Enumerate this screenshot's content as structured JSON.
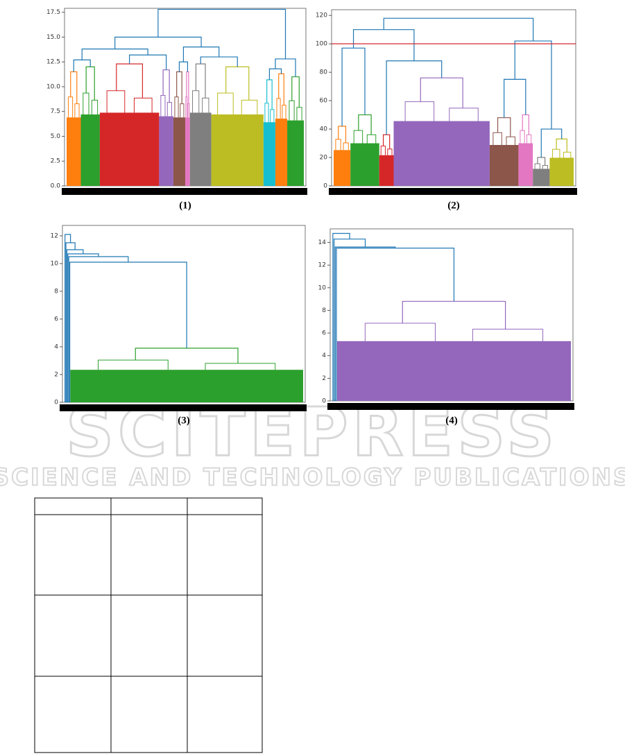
{
  "figure": {
    "watermark": {
      "line1": "SCITEPRESS",
      "line2": "SCIENCE AND TECHNOLOGY PUBLICATIONS"
    },
    "panels": [
      {
        "caption": "(1)",
        "ylim": [
          0,
          17.9
        ],
        "yticks": [
          {
            "value": 0,
            "label": "0.0"
          },
          2.5,
          {
            "value": 5,
            "label": "5.0"
          },
          7.5,
          {
            "value": 10,
            "label": "10.0"
          },
          12.5,
          {
            "value": 15,
            "label": "15.0"
          },
          17.5
        ],
        "link_color": "#1f77b4",
        "chain": false,
        "clusters": [
          {
            "color": "#ff7f0e",
            "height": 11.5,
            "size": 0.06
          },
          {
            "color": "#2ca02c",
            "height": 12,
            "size": 0.08
          },
          {
            "color": "#d62728",
            "height": 12.3,
            "size": 0.25
          },
          {
            "color": "#9467bd",
            "height": 11.7,
            "size": 0.06
          },
          {
            "color": "#8c564b",
            "height": 11.5,
            "size": 0.05
          },
          {
            "color": "#e377c2",
            "height": 11.5,
            "size": 0.02
          },
          {
            "color": "#7f7f7f",
            "height": 12.3,
            "size": 0.09
          },
          {
            "color": "#bcbd22",
            "height": 12,
            "size": 0.22
          },
          {
            "color": "#17becf",
            "height": 10.7,
            "size": 0.05
          },
          {
            "color": "#ff7f0e",
            "height": 11.3,
            "size": 0.05
          },
          {
            "color": "#2ca02c",
            "height": 11,
            "size": 0.07
          }
        ],
        "merges": [
          12.7,
          13.2,
          12.5,
          13,
          11.8,
          13.8,
          14,
          12.8,
          15,
          17.8
        ]
      },
      {
        "caption": "(2)",
        "ylim": [
          0,
          124
        ],
        "yticks": [
          0,
          20,
          40,
          60,
          80,
          100,
          120
        ],
        "threshold": {
          "value": 100,
          "color": "#d62728"
        },
        "link_color": "#1f77b4",
        "chain": false,
        "clusters": [
          {
            "color": "#ff7f0e",
            "height": 42,
            "size": 0.07
          },
          {
            "color": "#2ca02c",
            "height": 50,
            "size": 0.12
          },
          {
            "color": "#d62728",
            "height": 36,
            "size": 0.06
          },
          {
            "color": "#9467bd",
            "height": 76,
            "size": 0.4
          },
          {
            "color": "#8c564b",
            "height": 48,
            "size": 0.12
          },
          {
            "color": "#e377c2",
            "height": 50,
            "size": 0.06
          },
          {
            "color": "#7f7f7f",
            "height": 20,
            "size": 0.07
          },
          {
            "color": "#bcbd22",
            "height": 33,
            "size": 0.1
          }
        ],
        "merges": [
          97,
          88,
          75,
          40,
          110,
          102,
          118
        ]
      },
      {
        "caption": "(3)",
        "ylim": [
          0,
          12.75
        ],
        "yticks": [
          0,
          2,
          4,
          6,
          8,
          10,
          12
        ],
        "link_color": "#1f77b4",
        "chain": true,
        "clusters": [
          {
            "color": "#1f77b4",
            "height": 0,
            "size": 0.004
          },
          {
            "color": "#1f77b4",
            "height": 0,
            "size": 0.004
          },
          {
            "color": "#1f77b4",
            "height": 0,
            "size": 0.004
          },
          {
            "color": "#1f77b4",
            "height": 0,
            "size": 0.004
          },
          {
            "color": "#1f77b4",
            "height": 0,
            "size": 0.004
          },
          {
            "color": "#1f77b4",
            "height": 0,
            "size": 0.004
          },
          {
            "color": "#2ca02c",
            "height": 3.9,
            "size": 0.976
          }
        ],
        "merges": [
          10.1,
          10.5,
          10.7,
          11,
          11.5,
          12.1
        ]
      },
      {
        "caption": "(4)",
        "ylim": [
          0,
          15.2
        ],
        "yticks": [
          0,
          2,
          4,
          6,
          8,
          10,
          12,
          14
        ],
        "link_color": "#1f77b4",
        "chain": true,
        "clusters": [
          {
            "color": "#1f77b4",
            "height": 0,
            "size": 0.005
          },
          {
            "color": "#1f77b4",
            "height": 0,
            "size": 0.005
          },
          {
            "color": "#1f77b4",
            "height": 0,
            "size": 0.005
          },
          {
            "color": "#1f77b4",
            "height": 0,
            "size": 0.005
          },
          {
            "color": "#9467bd",
            "height": 8.8,
            "size": 0.98
          }
        ],
        "merges": [
          13.5,
          13.6,
          14.3,
          14.8
        ]
      }
    ]
  }
}
